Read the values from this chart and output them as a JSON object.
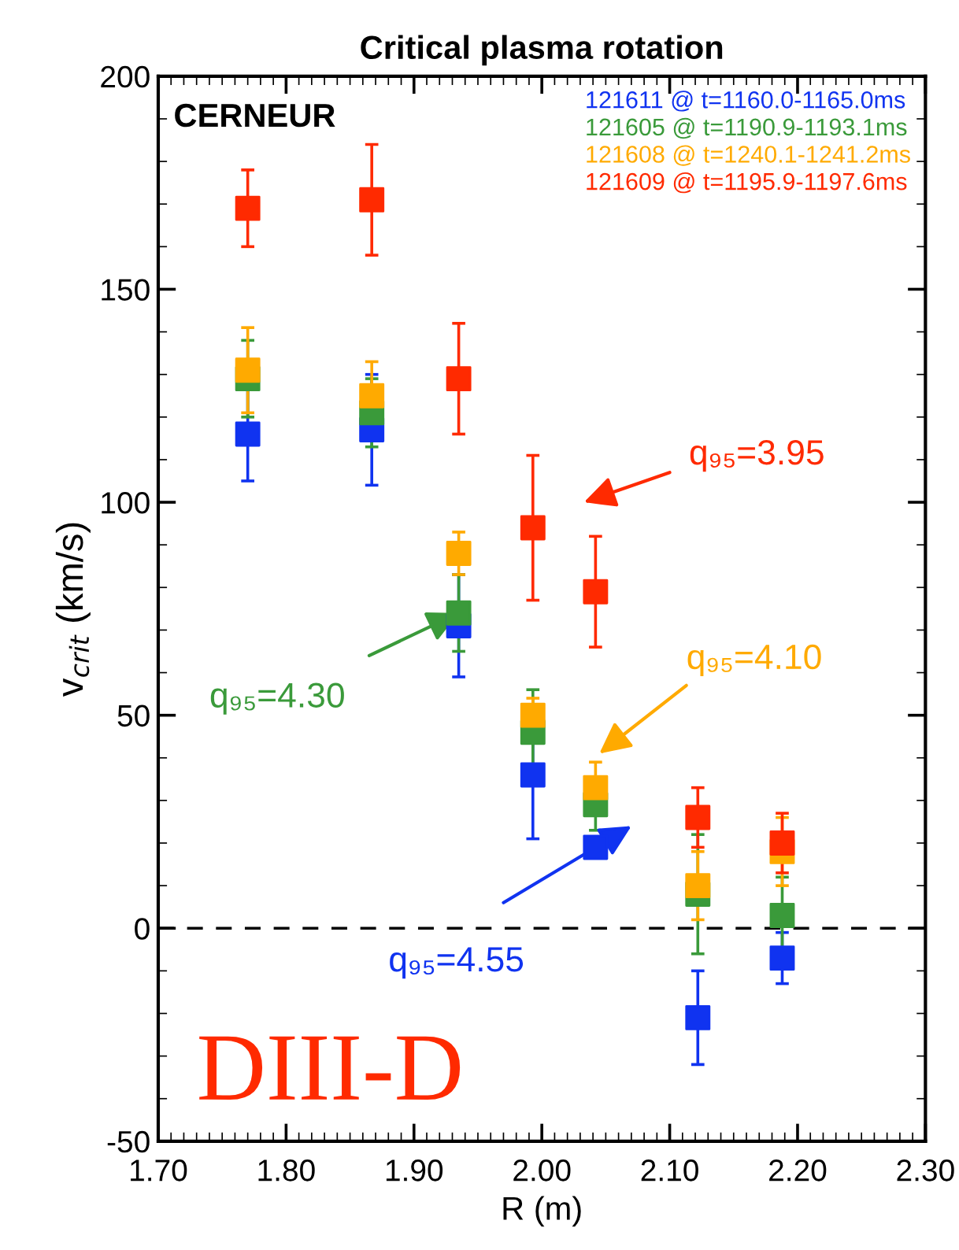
{
  "chart_data": {
    "type": "scatter",
    "title": "Critical plasma rotation",
    "xlabel": "R (m)",
    "ylabel": "v$_{crit}$ (km/s)",
    "xlim": [
      1.7,
      2.3
    ],
    "xticks": [
      {
        "value": 1.7,
        "label": "1.70"
      },
      {
        "value": 1.8,
        "label": "1.80"
      },
      {
        "value": 1.9,
        "label": "1.90"
      },
      {
        "value": 2.0,
        "label": "2.00"
      },
      {
        "value": 2.1,
        "label": "2.10"
      },
      {
        "value": 2.2,
        "label": "2.20"
      },
      {
        "value": 2.3,
        "label": "2.30"
      }
    ],
    "ylim": [
      -50,
      200
    ],
    "yticks": [
      -50,
      0,
      50,
      100,
      150,
      200
    ],
    "x": [
      1.77,
      1.867,
      1.935,
      1.993,
      2.042,
      2.122,
      2.188
    ],
    "series": [
      {
        "name": "121611 @ t=1160.0-1165.0ms",
        "color": "#1033f0",
        "values": [
          116,
          117,
          71,
          36,
          19,
          -21,
          -7
        ],
        "errors": [
          11,
          13,
          12,
          15,
          null,
          11,
          6
        ]
      },
      {
        "name": "121605 @ t=1190.9-1193.1ms",
        "color": "#3a9a3a",
        "values": [
          129,
          121,
          74,
          46,
          29,
          8,
          3
        ],
        "errors": [
          9,
          8,
          9,
          10,
          6,
          14,
          9
        ]
      },
      {
        "name": "121608 @ t=1240.1-1241.2ms",
        "color": "#ffaa00",
        "values": [
          131,
          125,
          88,
          50,
          33,
          10,
          18
        ],
        "errors": [
          10,
          8,
          5,
          4,
          6,
          8,
          8
        ]
      },
      {
        "name": "121609 @ t=1195.9-1197.6ms",
        "color": "#ff2a00",
        "values": [
          169,
          171,
          129,
          94,
          79,
          26,
          20
        ],
        "errors": [
          9,
          13,
          13,
          17,
          13,
          7,
          7
        ]
      }
    ],
    "marker": "square",
    "legend": "top right",
    "grid": false,
    "ref_lines": [
      {
        "axis": "y",
        "value": 0,
        "line_style": "dashed",
        "color": "#000000"
      }
    ],
    "annotations": [
      "q₉₅=3.95",
      {
        "text": "q₉₅=4.30",
        "x": 1.935,
        "y": 74
      },
      "q₉₅=4.10",
      "q₉₅=4.55",
      "CERNEUR",
      "DIII-D"
    ]
  }
}
